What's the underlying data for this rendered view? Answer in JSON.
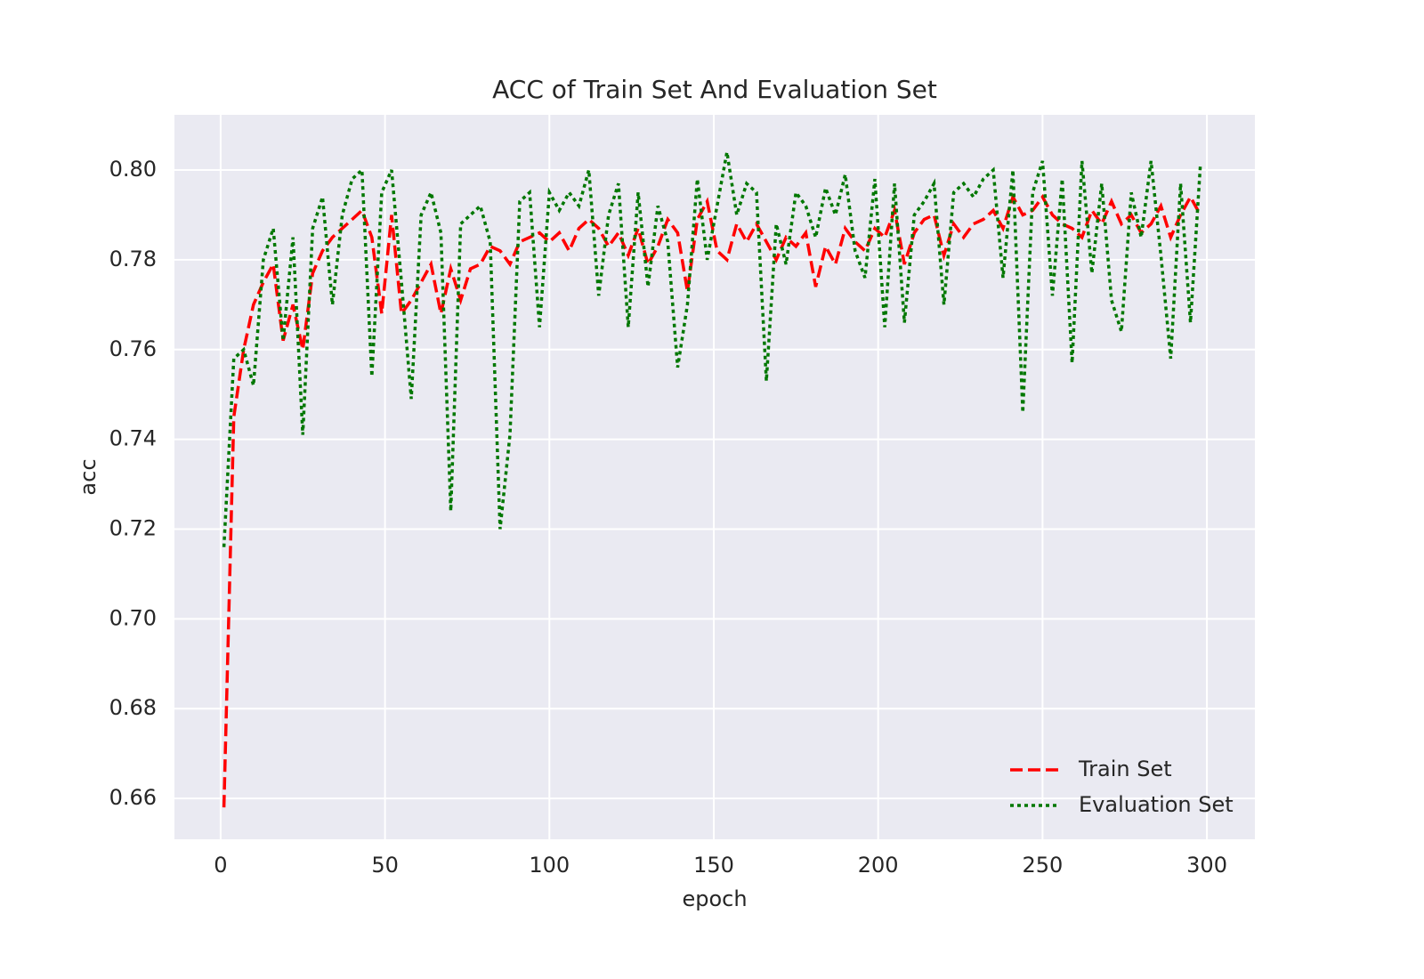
{
  "chart_data": {
    "type": "line",
    "title": "ACC of Train Set And Evaluation Set",
    "xlabel": "epoch",
    "ylabel": "acc",
    "x": [
      1,
      4,
      7,
      10,
      13,
      16,
      19,
      22,
      25,
      28,
      31,
      34,
      37,
      40,
      43,
      46,
      49,
      52,
      55,
      58,
      61,
      64,
      67,
      70,
      73,
      76,
      79,
      82,
      85,
      88,
      91,
      94,
      97,
      100,
      103,
      106,
      109,
      112,
      115,
      118,
      121,
      124,
      127,
      130,
      133,
      136,
      139,
      142,
      145,
      148,
      151,
      154,
      157,
      160,
      163,
      166,
      169,
      172,
      175,
      178,
      181,
      184,
      187,
      190,
      193,
      196,
      199,
      202,
      205,
      208,
      211,
      214,
      217,
      220,
      223,
      226,
      229,
      232,
      235,
      238,
      241,
      244,
      247,
      250,
      253,
      256,
      259,
      262,
      265,
      268,
      271,
      274,
      277,
      280,
      283,
      286,
      289,
      292,
      295,
      298
    ],
    "series": [
      {
        "name": "Train Set",
        "color": "#ff0000",
        "linestyle": "dashed",
        "values": [
          0.658,
          0.745,
          0.76,
          0.77,
          0.775,
          0.779,
          0.762,
          0.77,
          0.76,
          0.777,
          0.782,
          0.785,
          0.787,
          0.789,
          0.791,
          0.785,
          0.768,
          0.79,
          0.768,
          0.771,
          0.775,
          0.779,
          0.768,
          0.778,
          0.771,
          0.778,
          0.779,
          0.783,
          0.782,
          0.779,
          0.784,
          0.785,
          0.786,
          0.784,
          0.786,
          0.782,
          0.787,
          0.789,
          0.787,
          0.783,
          0.786,
          0.781,
          0.787,
          0.779,
          0.783,
          0.789,
          0.786,
          0.773,
          0.789,
          0.793,
          0.782,
          0.78,
          0.788,
          0.784,
          0.788,
          0.784,
          0.78,
          0.785,
          0.783,
          0.786,
          0.774,
          0.783,
          0.779,
          0.787,
          0.784,
          0.782,
          0.787,
          0.785,
          0.791,
          0.779,
          0.786,
          0.789,
          0.79,
          0.781,
          0.788,
          0.785,
          0.788,
          0.789,
          0.791,
          0.787,
          0.794,
          0.79,
          0.791,
          0.794,
          0.79,
          0.788,
          0.787,
          0.785,
          0.791,
          0.788,
          0.793,
          0.788,
          0.79,
          0.786,
          0.788,
          0.792,
          0.785,
          0.79,
          0.794,
          0.79
        ]
      },
      {
        "name": "Evaluation Set",
        "color": "#007700",
        "linestyle": "dotted",
        "values": [
          0.716,
          0.758,
          0.76,
          0.752,
          0.78,
          0.787,
          0.762,
          0.785,
          0.741,
          0.787,
          0.794,
          0.77,
          0.79,
          0.798,
          0.8,
          0.754,
          0.795,
          0.8,
          0.775,
          0.749,
          0.79,
          0.795,
          0.786,
          0.724,
          0.788,
          0.79,
          0.792,
          0.784,
          0.72,
          0.741,
          0.793,
          0.795,
          0.765,
          0.795,
          0.791,
          0.795,
          0.792,
          0.8,
          0.772,
          0.79,
          0.797,
          0.765,
          0.795,
          0.774,
          0.792,
          0.784,
          0.756,
          0.77,
          0.798,
          0.78,
          0.792,
          0.804,
          0.79,
          0.797,
          0.795,
          0.753,
          0.788,
          0.779,
          0.795,
          0.792,
          0.785,
          0.796,
          0.79,
          0.799,
          0.782,
          0.776,
          0.798,
          0.765,
          0.797,
          0.766,
          0.79,
          0.793,
          0.797,
          0.77,
          0.795,
          0.797,
          0.794,
          0.798,
          0.8,
          0.776,
          0.8,
          0.746,
          0.795,
          0.802,
          0.772,
          0.798,
          0.757,
          0.802,
          0.777,
          0.797,
          0.771,
          0.764,
          0.795,
          0.785,
          0.802,
          0.781,
          0.758,
          0.797,
          0.766,
          0.801
        ]
      }
    ],
    "xlim": [
      -14.05,
      314.6
    ],
    "xticks": [
      0,
      50,
      100,
      150,
      200,
      250,
      300
    ],
    "ylim": [
      0.6509,
      0.8123
    ],
    "yticks": [
      0.66,
      0.68,
      {
        "value": 0.7,
        "label": "0.70"
      },
      0.72,
      0.74,
      0.76,
      0.78,
      {
        "value": 0.8,
        "label": "0.80"
      }
    ],
    "grid": true,
    "legend": "lower right"
  }
}
